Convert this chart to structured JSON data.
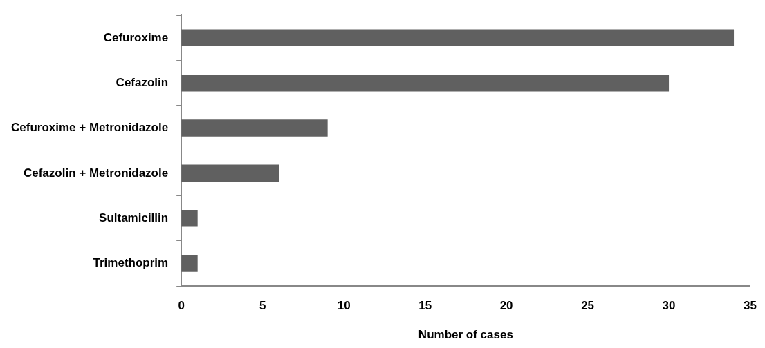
{
  "chart_data": {
    "type": "bar",
    "orientation": "horizontal",
    "xlabel": "Number of cases",
    "categories": [
      "Cefuroxime",
      "Cefazolin",
      "Cefuroxime + Metronidazole",
      "Cefazolin + Metronidazole",
      "Sultamicillin",
      "Trimethoprim"
    ],
    "values": [
      34,
      30,
      9,
      6,
      1,
      1
    ],
    "color": "#606060",
    "xlim": [
      0,
      35
    ],
    "xticks": [
      0,
      5,
      10,
      15,
      20,
      25,
      30,
      35
    ],
    "grid": false,
    "legend": false
  }
}
